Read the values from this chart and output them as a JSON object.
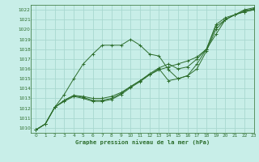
{
  "title": "Graphe pression niveau de la mer (hPa)",
  "background_color": "#c8eee8",
  "grid_color": "#a8d8d0",
  "line_color": "#2d6e2d",
  "xlim": [
    -0.5,
    23
  ],
  "ylim": [
    1009.5,
    1022.5
  ],
  "yticks": [
    1010,
    1011,
    1012,
    1013,
    1014,
    1015,
    1016,
    1017,
    1018,
    1019,
    1020,
    1021,
    1022
  ],
  "xticks": [
    0,
    1,
    2,
    3,
    4,
    5,
    6,
    7,
    8,
    9,
    10,
    11,
    12,
    13,
    14,
    15,
    16,
    17,
    18,
    19,
    20,
    21,
    22,
    23
  ],
  "series": [
    [
      1009.8,
      1010.4,
      1012.1,
      1013.4,
      1015.0,
      1016.5,
      1017.5,
      1018.4,
      1018.4,
      1018.4,
      1019.0,
      1018.4,
      1017.5,
      1017.3,
      1015.9,
      1015.0,
      1015.3,
      1016.0,
      1017.8,
      1020.0,
      1021.0,
      1021.5,
      1021.8,
      1022.0
    ],
    [
      1009.8,
      1010.4,
      1012.1,
      1012.8,
      1013.3,
      1013.2,
      1013.0,
      1013.0,
      1013.2,
      1013.6,
      1014.2,
      1014.8,
      1015.4,
      1015.9,
      1016.2,
      1016.5,
      1016.8,
      1017.2,
      1018.0,
      1019.5,
      1021.0,
      1021.5,
      1021.8,
      1022.0
    ],
    [
      1009.8,
      1010.4,
      1012.1,
      1012.8,
      1013.3,
      1013.1,
      1012.8,
      1012.8,
      1013.0,
      1013.5,
      1014.2,
      1014.8,
      1015.5,
      1016.1,
      1016.5,
      1016.0,
      1016.2,
      1017.0,
      1018.0,
      1020.3,
      1021.0,
      1021.5,
      1021.9,
      1022.1
    ],
    [
      1009.8,
      1010.4,
      1012.1,
      1012.7,
      1013.2,
      1013.0,
      1012.7,
      1012.7,
      1012.9,
      1013.4,
      1014.1,
      1014.7,
      1015.4,
      1016.0,
      1014.8,
      1015.0,
      1015.3,
      1016.5,
      1018.0,
      1020.5,
      1021.2,
      1021.5,
      1022.0,
      1022.2
    ]
  ]
}
